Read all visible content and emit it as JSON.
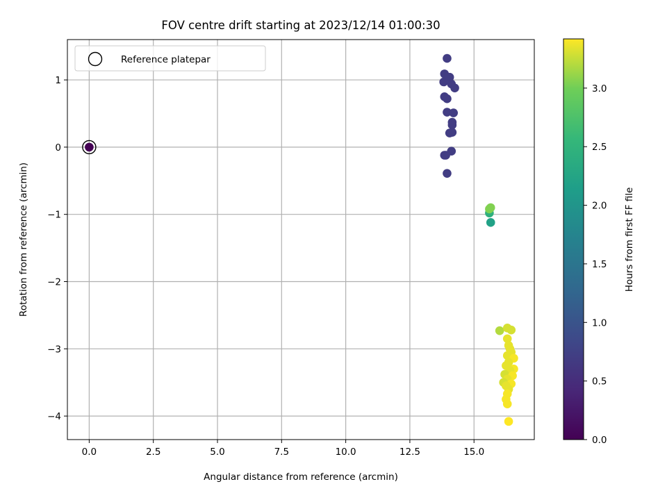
{
  "chart_data": {
    "type": "scatter",
    "title": "FOV centre drift starting at 2023/12/14 01:00:30",
    "xlabel": "Angular distance from reference (arcmin)",
    "ylabel": "Rotation from reference (arcmin)",
    "xlim": [
      -0.85,
      17.35
    ],
    "ylim": [
      -4.35,
      1.6
    ],
    "xticks": [
      0.0,
      2.5,
      5.0,
      7.5,
      10.0,
      12.5,
      15.0
    ],
    "xtick_labels": [
      "0.0",
      "2.5",
      "5.0",
      "7.5",
      "10.0",
      "12.5",
      "15.0"
    ],
    "yticks": [
      1,
      0,
      -1,
      -2,
      -3,
      -4
    ],
    "ytick_labels": [
      "1",
      "0",
      "−1",
      "−2",
      "−3",
      "−4"
    ],
    "grid": true,
    "legend": {
      "placement": "upper-left",
      "entries": [
        "Reference platepar"
      ]
    },
    "colorbar": {
      "label": "Hours from first FF file",
      "range": [
        0.0,
        3.42
      ],
      "colormap": "viridis",
      "ticks": [
        0.0,
        0.5,
        1.0,
        1.5,
        2.0,
        2.5,
        3.0
      ],
      "tick_labels": [
        "0.0",
        "0.5",
        "1.0",
        "1.5",
        "2.0",
        "2.5",
        "3.0"
      ]
    },
    "reference_point": {
      "x": 0.0,
      "y": 0.0
    },
    "points": [
      {
        "x": 0.0,
        "y": 0.0,
        "h": 0.0
      },
      {
        "x": 13.95,
        "y": 1.32,
        "h": 0.7
      },
      {
        "x": 13.85,
        "y": 1.09,
        "h": 0.7
      },
      {
        "x": 14.05,
        "y": 1.04,
        "h": 0.7
      },
      {
        "x": 13.82,
        "y": 0.97,
        "h": 0.7
      },
      {
        "x": 14.12,
        "y": 0.94,
        "h": 0.7
      },
      {
        "x": 14.25,
        "y": 0.88,
        "h": 0.7
      },
      {
        "x": 13.85,
        "y": 0.75,
        "h": 0.7
      },
      {
        "x": 13.95,
        "y": 0.72,
        "h": 0.7
      },
      {
        "x": 13.95,
        "y": 0.52,
        "h": 0.7
      },
      {
        "x": 14.2,
        "y": 0.51,
        "h": 0.7
      },
      {
        "x": 14.15,
        "y": 0.37,
        "h": 0.7
      },
      {
        "x": 14.15,
        "y": 0.33,
        "h": 0.7
      },
      {
        "x": 14.05,
        "y": 0.21,
        "h": 0.7
      },
      {
        "x": 14.15,
        "y": 0.22,
        "h": 0.7
      },
      {
        "x": 14.12,
        "y": -0.06,
        "h": 0.7
      },
      {
        "x": 13.85,
        "y": -0.12,
        "h": 0.7
      },
      {
        "x": 13.9,
        "y": -0.12,
        "h": 0.7
      },
      {
        "x": 13.95,
        "y": -0.39,
        "h": 0.7
      },
      {
        "x": 15.65,
        "y": -1.12,
        "h": 2.2
      },
      {
        "x": 15.6,
        "y": -0.98,
        "h": 2.45
      },
      {
        "x": 15.6,
        "y": -0.92,
        "h": 3.05
      },
      {
        "x": 15.65,
        "y": -0.9,
        "h": 3.05
      },
      {
        "x": 16.0,
        "y": -2.73,
        "h": 3.2
      },
      {
        "x": 16.3,
        "y": -2.69,
        "h": 3.3
      },
      {
        "x": 16.45,
        "y": -2.72,
        "h": 3.3
      },
      {
        "x": 16.3,
        "y": -2.85,
        "h": 3.35
      },
      {
        "x": 16.35,
        "y": -2.95,
        "h": 3.35
      },
      {
        "x": 16.4,
        "y": -3.0,
        "h": 3.35
      },
      {
        "x": 16.45,
        "y": -3.05,
        "h": 3.35
      },
      {
        "x": 16.3,
        "y": -3.1,
        "h": 3.35
      },
      {
        "x": 16.55,
        "y": -3.14,
        "h": 3.4
      },
      {
        "x": 16.35,
        "y": -3.2,
        "h": 3.35
      },
      {
        "x": 16.25,
        "y": -3.25,
        "h": 3.35
      },
      {
        "x": 16.55,
        "y": -3.3,
        "h": 3.4
      },
      {
        "x": 16.4,
        "y": -3.32,
        "h": 3.35
      },
      {
        "x": 16.2,
        "y": -3.38,
        "h": 3.3
      },
      {
        "x": 16.5,
        "y": -3.4,
        "h": 3.4
      },
      {
        "x": 16.3,
        "y": -3.45,
        "h": 3.35
      },
      {
        "x": 16.15,
        "y": -3.5,
        "h": 3.3
      },
      {
        "x": 16.45,
        "y": -3.52,
        "h": 3.4
      },
      {
        "x": 16.25,
        "y": -3.55,
        "h": 3.35
      },
      {
        "x": 16.35,
        "y": -3.6,
        "h": 3.35
      },
      {
        "x": 16.3,
        "y": -3.67,
        "h": 3.4
      },
      {
        "x": 16.25,
        "y": -3.75,
        "h": 3.4
      },
      {
        "x": 16.3,
        "y": -3.82,
        "h": 3.4
      },
      {
        "x": 16.35,
        "y": -4.08,
        "h": 3.42
      }
    ]
  }
}
